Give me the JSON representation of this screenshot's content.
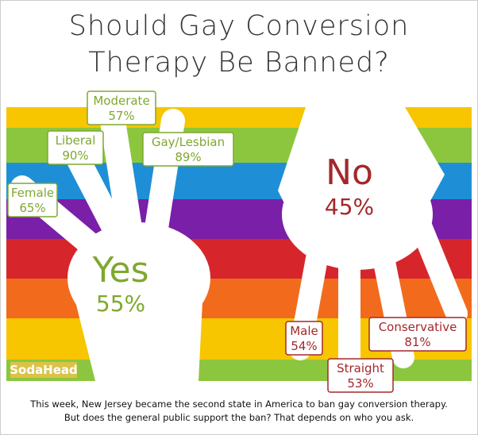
{
  "header": {
    "title_lines": [
      "Should Gay Conversion",
      "Therapy Be Banned?"
    ]
  },
  "yes": {
    "label": "Yes",
    "value": "55%"
  },
  "no": {
    "label": "No",
    "value": "45%"
  },
  "yes_groups": [
    {
      "label": "Moderate",
      "value": "57%"
    },
    {
      "label": "Liberal",
      "value": "90%"
    },
    {
      "label": "Gay/Lesbian",
      "value": "89%"
    },
    {
      "label": "Female",
      "value": "65%"
    }
  ],
  "no_groups": [
    {
      "label": "Male",
      "value": "54%"
    },
    {
      "label": "Conservative",
      "value": "81%"
    },
    {
      "label": "Straight",
      "value": "53%"
    }
  ],
  "brand": "SodaHead",
  "caption_lines": [
    "This week, New Jersey became the second state in America to ban gay conversion therapy.",
    "But does the general public support the ban? That depends on who you ask."
  ]
}
